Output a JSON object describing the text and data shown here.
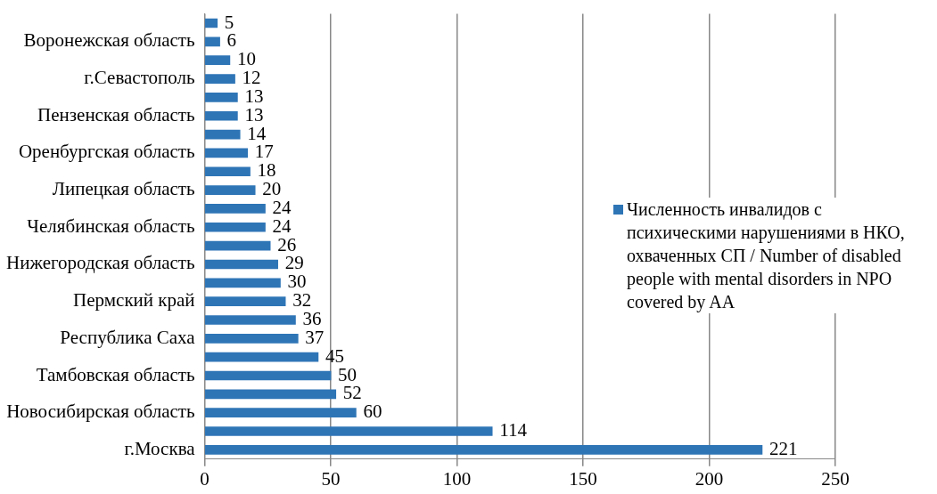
{
  "chart_data": {
    "type": "bar",
    "orientation": "horizontal",
    "categories": [
      null,
      "Воронежская область",
      null,
      "г.Севастополь",
      null,
      "Пензенская область",
      null,
      "Оренбургская область",
      null,
      "Липецкая область",
      null,
      "Челябинская область",
      null,
      "Нижегородская область",
      null,
      "Пермский край",
      null,
      "Республика Саха",
      null,
      "Тамбовская область",
      null,
      "Новосибирская область",
      null,
      "г.Москва"
    ],
    "series": [
      {
        "name": "Численность инвалидов с психическими нарушениями в НКО, охваченных СП / Number of disabled people with mental disorders in NPO covered by AA",
        "color": "#2e75b6",
        "values": [
          5,
          6,
          10,
          12,
          13,
          13,
          14,
          17,
          18,
          20,
          24,
          24,
          26,
          29,
          30,
          32,
          36,
          37,
          45,
          50,
          52,
          60,
          114,
          221
        ]
      }
    ],
    "xlim": [
      0,
      250
    ],
    "xticks": [
      0,
      50,
      100,
      150,
      200,
      250
    ],
    "grid": "x",
    "legend": "right",
    "data_labels": true
  }
}
